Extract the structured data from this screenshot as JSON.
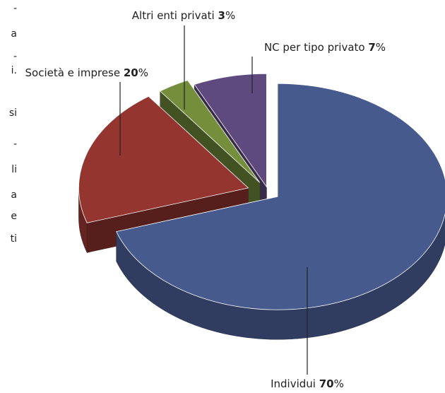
{
  "margin_fragments": [
    "-",
    "a",
    "-",
    "i.",
    "si",
    "-",
    "li",
    "a",
    "e",
    "ti"
  ],
  "chart_data": {
    "type": "pie",
    "slices": [
      {
        "name": "Individui",
        "value": 70,
        "color": "#465a8e"
      },
      {
        "name": "Società e imprese",
        "value": 20,
        "color": "#953530"
      },
      {
        "name": "Altri enti privati",
        "value": 3,
        "color": "#748e3c"
      },
      {
        "name": "NC per tipo privato",
        "value": 7,
        "color": "#5f4a80"
      }
    ],
    "value_suffix": "%",
    "legend": "none",
    "labels": "outside with leader lines"
  }
}
